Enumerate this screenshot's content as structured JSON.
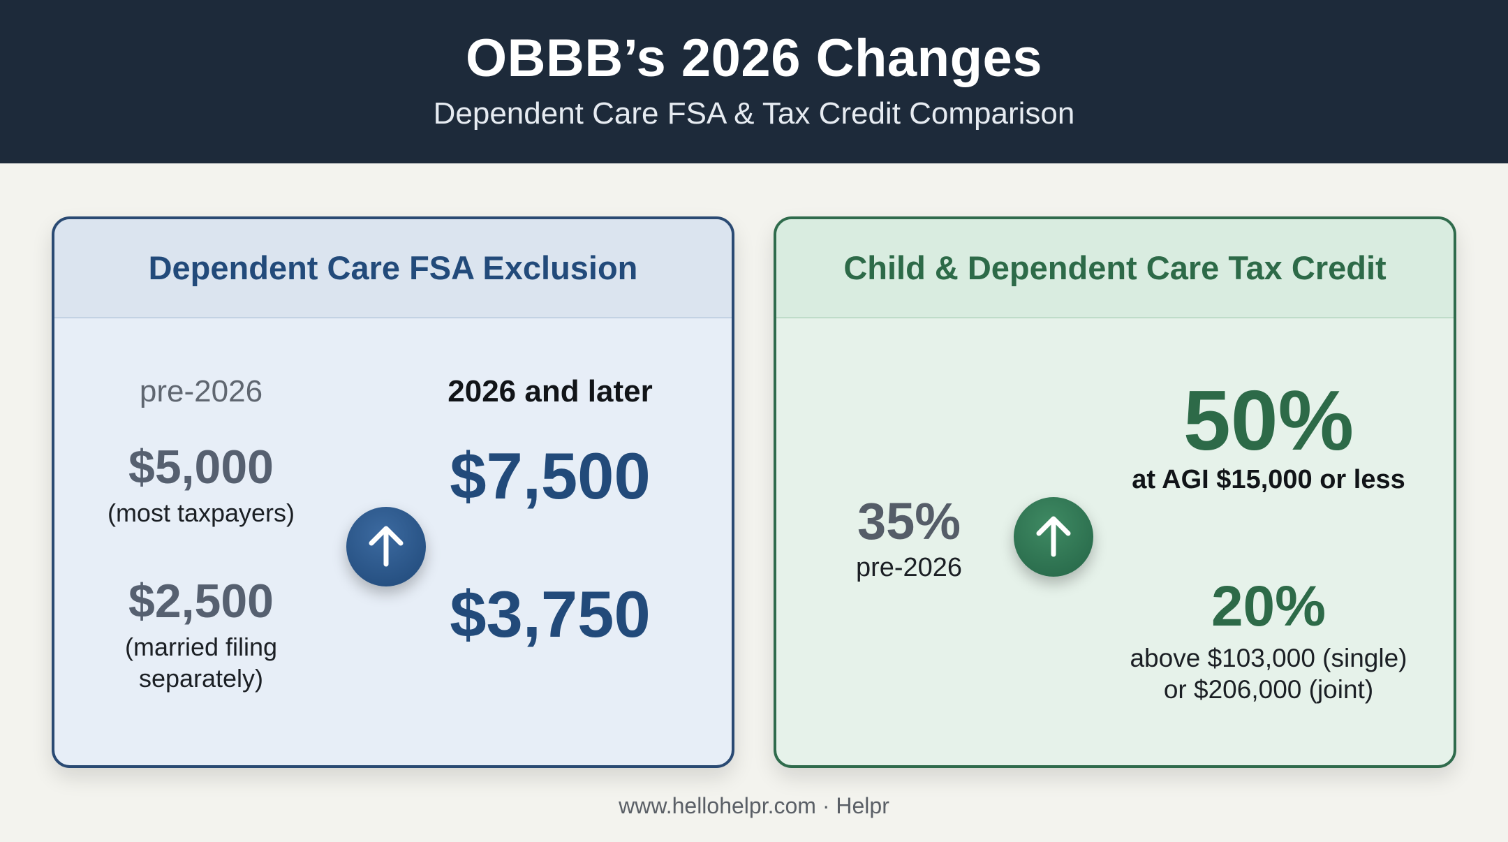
{
  "header": {
    "title": "OBBB’s 2026 Changes",
    "subtitle": "Dependent Care FSA & Tax Credit Comparison"
  },
  "fsa_card": {
    "heading": "Dependent Care FSA Exclusion",
    "pre_label": "pre-2026",
    "post_label": "2026 and later",
    "rows": [
      {
        "old_amount": "$5,000",
        "old_note": "(most taxpayers)",
        "new_amount": "$7,500"
      },
      {
        "old_amount": "$2,500",
        "old_note_line1": "(married filing",
        "old_note_line2": "separately)",
        "new_amount": "$3,750"
      }
    ],
    "icon": "arrow-up-icon",
    "accent": "#224a7a"
  },
  "credit_card": {
    "heading": "Child & Dependent Care Tax Credit",
    "old_rate": "35%",
    "old_label": "pre-2026",
    "high_rate": "50%",
    "high_note": "at AGI $15,000 or less",
    "low_rate": "20%",
    "low_note_line1": "above $103,000 (single)",
    "low_note_line2": "or $206,000 (joint)",
    "icon": "arrow-up-icon",
    "accent": "#2d6a48"
  },
  "footer": {
    "text": "www.hellohelpr.com · Helpr"
  }
}
